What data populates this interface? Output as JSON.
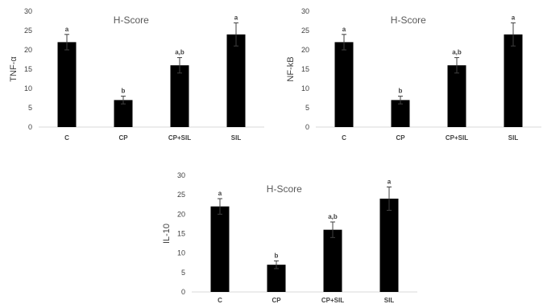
{
  "chart_data": [
    {
      "type": "bar",
      "title": "H-Score",
      "ylabel": "TNF-α",
      "xlabel": "",
      "ylim": [
        0,
        30
      ],
      "yticks": [
        0,
        5,
        10,
        15,
        20,
        25,
        30
      ],
      "categories": [
        "C",
        "CP",
        "CP+SIL",
        "SIL"
      ],
      "values": [
        22,
        7,
        16,
        24
      ],
      "errors": [
        2,
        1,
        2,
        3
      ],
      "annotations": [
        "a",
        "b",
        "a,b",
        "a"
      ],
      "bar_color": "#000000",
      "grid": false
    },
    {
      "type": "bar",
      "title": "H-Score",
      "ylabel": "NF-kB",
      "xlabel": "",
      "ylim": [
        0,
        30
      ],
      "yticks": [
        0,
        5,
        10,
        15,
        20,
        25,
        30
      ],
      "categories": [
        "C",
        "CP",
        "CP+SIL",
        "SIL"
      ],
      "values": [
        22,
        7,
        16,
        24
      ],
      "errors": [
        2,
        1,
        2,
        3
      ],
      "annotations": [
        "a",
        "b",
        "a,b",
        "a"
      ],
      "bar_color": "#000000",
      "grid": false
    },
    {
      "type": "bar",
      "title": "H-Score",
      "ylabel": "IL-10",
      "xlabel": "",
      "ylim": [
        0,
        30
      ],
      "yticks": [
        0,
        5,
        10,
        15,
        20,
        25,
        30
      ],
      "categories": [
        "C",
        "CP",
        "CP+SIL",
        "SIL"
      ],
      "values": [
        22,
        7,
        16,
        24
      ],
      "errors": [
        2,
        1,
        2,
        3
      ],
      "annotations": [
        "a",
        "b",
        "a,b",
        "a"
      ],
      "bar_color": "#000000",
      "grid": false
    }
  ]
}
